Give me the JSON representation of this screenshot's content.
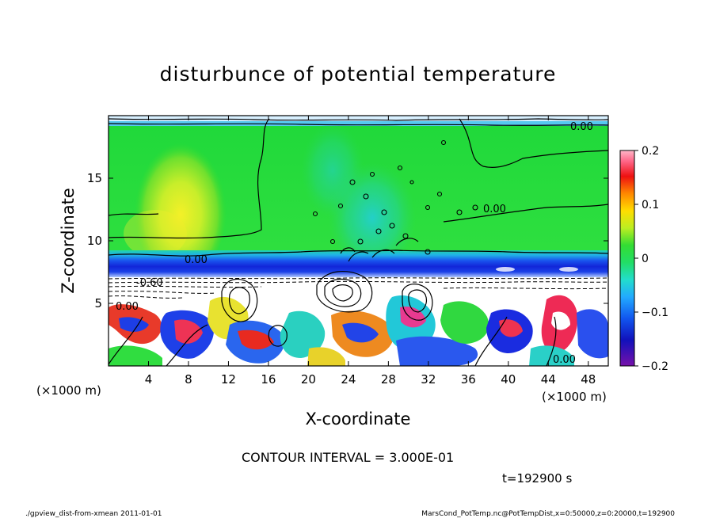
{
  "chart_data": {
    "type": "heatmap",
    "title": "disturbunce of potential temperature",
    "xlabel": "X-coordinate",
    "ylabel": "Z-coordinate",
    "x_unit_left": "(×1000 m)",
    "x_unit_right": "(×1000 m)",
    "xlim": [
      0,
      50
    ],
    "ylim": [
      0,
      20
    ],
    "x_ticks": [
      4,
      8,
      12,
      16,
      20,
      24,
      28,
      32,
      36,
      40,
      44,
      48
    ],
    "y_ticks": [
      5,
      10,
      15
    ],
    "colorbar": {
      "range": [
        -0.2,
        0.2
      ],
      "tick_values": [
        0.2,
        0.1,
        0,
        -0.1,
        -0.2
      ],
      "tick_labels": [
        "0.2",
        "0.1",
        "0",
        "−0.1",
        "−0.2"
      ]
    },
    "contour_labels": [
      {
        "text": "0.00",
        "x": 9.6,
        "z": 8.4
      },
      {
        "text": "-0.60",
        "x": 6.5,
        "z": 6.6
      },
      {
        "text": "0.00",
        "x": 1.6,
        "z": 4.9
      },
      {
        "text": "0.00",
        "x": 37.6,
        "z": 12.4
      },
      {
        "text": "0.00",
        "x": 47.2,
        "z": 19.2
      },
      {
        "text": "0.00",
        "x": 45.5,
        "z": 0.6
      }
    ],
    "grid": false,
    "legend": "colorbar-right"
  },
  "annotations": {
    "contour_interval": "CONTOUR INTERVAL = 3.000E-01",
    "time": "t=192900 s",
    "footer_left": "./gpview_dist-from-xmean  2011-01-01",
    "footer_right": "MarsCond_PotTemp.nc@PotTempDist,x=0:50000,z=0:20000,t=192900"
  },
  "colors": {
    "background": "#ffffff",
    "field_green": "#22dd33",
    "field_yellow": "#eeee22",
    "field_blue": "#1133dd",
    "field_cyan": "#22cccc",
    "field_red": "#ee2222",
    "field_purple": "#7722aa"
  }
}
